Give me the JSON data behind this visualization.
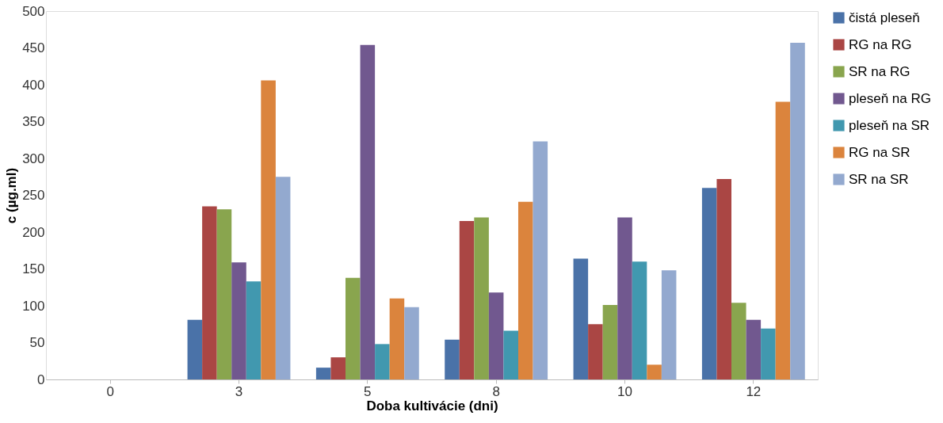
{
  "chart_data": {
    "type": "bar",
    "xlabel": "Doba kultivácie (dni)",
    "ylabel": "c (µg.ml)",
    "categories": [
      "0",
      "3",
      "5",
      "8",
      "10",
      "12"
    ],
    "series": [
      {
        "name": "čistá pleseň",
        "color": "#4a72a8",
        "values": [
          0,
          81,
          16,
          54,
          164,
          260
        ]
      },
      {
        "name": "RG na RG",
        "color": "#aa4644",
        "values": [
          0,
          235,
          30,
          215,
          75,
          272
        ]
      },
      {
        "name": "SR na RG",
        "color": "#89a54e",
        "values": [
          0,
          231,
          138,
          220,
          101,
          104
        ]
      },
      {
        "name": "pleseň na RG",
        "color": "#71588f",
        "values": [
          0,
          159,
          454,
          118,
          220,
          81
        ]
      },
      {
        "name": "pleseň na SR",
        "color": "#4198af",
        "values": [
          0,
          133,
          48,
          66,
          160,
          69
        ]
      },
      {
        "name": "RG na SR",
        "color": "#db843d",
        "values": [
          0,
          406,
          110,
          241,
          20,
          377
        ]
      },
      {
        "name": "SR na SR",
        "color": "#93a9cf",
        "values": [
          0,
          275,
          98,
          323,
          148,
          457
        ]
      }
    ],
    "ylim": [
      0,
      500
    ],
    "yticks": [
      0,
      50,
      100,
      150,
      200,
      250,
      300,
      350,
      400,
      450,
      500
    ],
    "grid": false,
    "legend": "right"
  }
}
